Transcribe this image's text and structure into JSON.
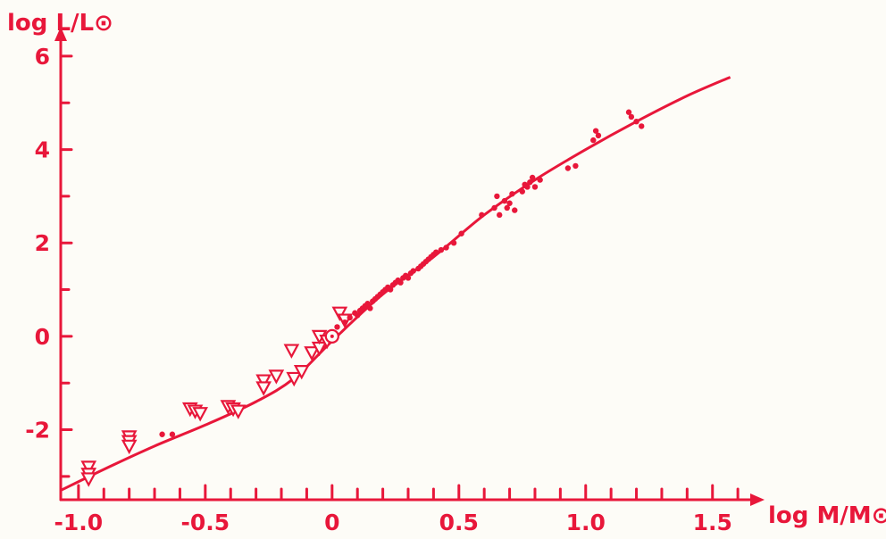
{
  "colors": {
    "ink": "#e8173a",
    "paper": "#fdfcf7"
  },
  "chart_data": {
    "type": "scatter",
    "title": "",
    "xlabel": "log M/M⊙",
    "ylabel": "log L/L⊙",
    "xlim": [
      -1.07,
      1.67
    ],
    "ylim": [
      -3.5,
      6.4
    ],
    "xticks": [
      -1.0,
      -0.5,
      0,
      0.5,
      1.0,
      1.5
    ],
    "xtick_labels": [
      "-1.0",
      "-0.5",
      "0",
      "0.5",
      "1.0",
      "1.5"
    ],
    "yticks": [
      -2,
      0,
      2,
      4,
      6
    ],
    "ytick_labels": [
      "-2",
      "0",
      "2",
      "4",
      "6"
    ],
    "grid": false,
    "legend": false,
    "series": [
      {
        "marker": "triangle-down",
        "points": [
          [
            -0.96,
            -2.8
          ],
          [
            -0.96,
            -2.95
          ],
          [
            -0.96,
            -3.05
          ],
          [
            -0.8,
            -2.15
          ],
          [
            -0.8,
            -2.25
          ],
          [
            -0.8,
            -2.35
          ],
          [
            -0.56,
            -1.55
          ],
          [
            -0.54,
            -1.6
          ],
          [
            -0.52,
            -1.65
          ],
          [
            -0.41,
            -1.5
          ],
          [
            -0.39,
            -1.55
          ],
          [
            -0.37,
            -1.6
          ],
          [
            -0.27,
            -0.95
          ],
          [
            -0.27,
            -1.1
          ],
          [
            -0.22,
            -0.85
          ],
          [
            -0.16,
            -0.3
          ],
          [
            -0.15,
            -0.9
          ],
          [
            -0.12,
            -0.75
          ],
          [
            -0.08,
            -0.35
          ],
          [
            -0.05,
            -0.25
          ],
          [
            -0.05,
            0.0
          ],
          [
            -0.02,
            -0.1
          ],
          [
            0.03,
            0.5
          ],
          [
            0.05,
            0.35
          ]
        ]
      },
      {
        "marker": "dot",
        "points": [
          [
            -0.67,
            -2.1
          ],
          [
            -0.63,
            -2.1
          ],
          [
            0.02,
            0.2
          ],
          [
            0.05,
            0.3
          ],
          [
            0.07,
            0.4
          ],
          [
            0.09,
            0.5
          ],
          [
            0.1,
            0.45
          ],
          [
            0.11,
            0.55
          ],
          [
            0.12,
            0.6
          ],
          [
            0.13,
            0.65
          ],
          [
            0.14,
            0.7
          ],
          [
            0.15,
            0.6
          ],
          [
            0.16,
            0.75
          ],
          [
            0.17,
            0.8
          ],
          [
            0.18,
            0.85
          ],
          [
            0.19,
            0.9
          ],
          [
            0.2,
            0.95
          ],
          [
            0.21,
            1.0
          ],
          [
            0.22,
            1.05
          ],
          [
            0.23,
            1.0
          ],
          [
            0.24,
            1.1
          ],
          [
            0.25,
            1.15
          ],
          [
            0.26,
            1.2
          ],
          [
            0.27,
            1.15
          ],
          [
            0.28,
            1.25
          ],
          [
            0.29,
            1.3
          ],
          [
            0.3,
            1.25
          ],
          [
            0.31,
            1.35
          ],
          [
            0.32,
            1.4
          ],
          [
            0.34,
            1.45
          ],
          [
            0.35,
            1.5
          ],
          [
            0.36,
            1.55
          ],
          [
            0.37,
            1.6
          ],
          [
            0.38,
            1.65
          ],
          [
            0.39,
            1.7
          ],
          [
            0.4,
            1.75
          ],
          [
            0.41,
            1.8
          ],
          [
            0.43,
            1.85
          ],
          [
            0.45,
            1.9
          ],
          [
            0.48,
            2.0
          ],
          [
            0.51,
            2.2
          ],
          [
            0.59,
            2.6
          ],
          [
            0.64,
            2.75
          ],
          [
            0.65,
            3.0
          ],
          [
            0.66,
            2.6
          ],
          [
            0.68,
            2.9
          ],
          [
            0.69,
            2.75
          ],
          [
            0.7,
            2.85
          ],
          [
            0.71,
            3.05
          ],
          [
            0.72,
            2.7
          ],
          [
            0.75,
            3.1
          ],
          [
            0.76,
            3.25
          ],
          [
            0.77,
            3.2
          ],
          [
            0.78,
            3.3
          ],
          [
            0.79,
            3.4
          ],
          [
            0.8,
            3.2
          ],
          [
            0.82,
            3.35
          ],
          [
            0.93,
            3.6
          ],
          [
            0.96,
            3.65
          ],
          [
            1.03,
            4.2
          ],
          [
            1.04,
            4.4
          ],
          [
            1.05,
            4.3
          ],
          [
            1.17,
            4.8
          ],
          [
            1.18,
            4.7
          ],
          [
            1.2,
            4.6
          ],
          [
            1.22,
            4.5
          ]
        ]
      },
      {
        "marker": "sun",
        "points": [
          [
            0.0,
            0.0
          ]
        ]
      }
    ],
    "curve": {
      "x": [
        -1.07,
        -0.9,
        -0.7,
        -0.5,
        -0.3,
        -0.15,
        0.0,
        0.2,
        0.4,
        0.6,
        0.8,
        1.0,
        1.2,
        1.4,
        1.57
      ],
      "y": [
        -3.3,
        -2.85,
        -2.35,
        -1.9,
        -1.4,
        -0.9,
        -0.1,
        0.9,
        1.7,
        2.6,
        3.35,
        4.0,
        4.6,
        5.15,
        5.55
      ]
    }
  }
}
